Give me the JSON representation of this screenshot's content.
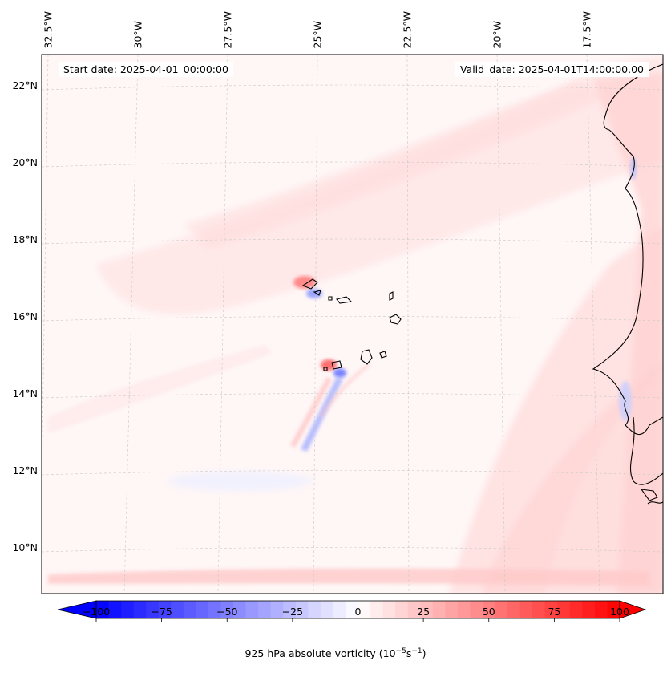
{
  "map": {
    "start_date": "Start date: 2025-04-01_00:00:00",
    "valid_date": "Valid_date: 2025-04-01T14:00:00.00",
    "lon_labels": [
      "32.5°W",
      "30°W",
      "27.5°W",
      "25°W",
      "22.5°W",
      "20°W",
      "17.5°W"
    ],
    "lat_labels": [
      "22°N",
      "20°N",
      "18°N",
      "16°N",
      "14°N",
      "12°N",
      "10°N"
    ]
  },
  "colorbar": {
    "ticks": [
      "−100",
      "−75",
      "−50",
      "−25",
      "0",
      "25",
      "50",
      "75",
      "100"
    ],
    "tick_values": [
      -100,
      -75,
      -50,
      -25,
      0,
      25,
      50,
      75,
      100
    ],
    "min": -105,
    "max": 105,
    "levels": 42,
    "title_prefix": "925 hPa absolute vorticity (10",
    "title_exp1": "−5",
    "title_mid": "s",
    "title_exp2": "−1",
    "title_suffix": ")",
    "colors": {
      "low": "#0000ff",
      "mid": "#ffffff",
      "high": "#ff0000"
    }
  }
}
